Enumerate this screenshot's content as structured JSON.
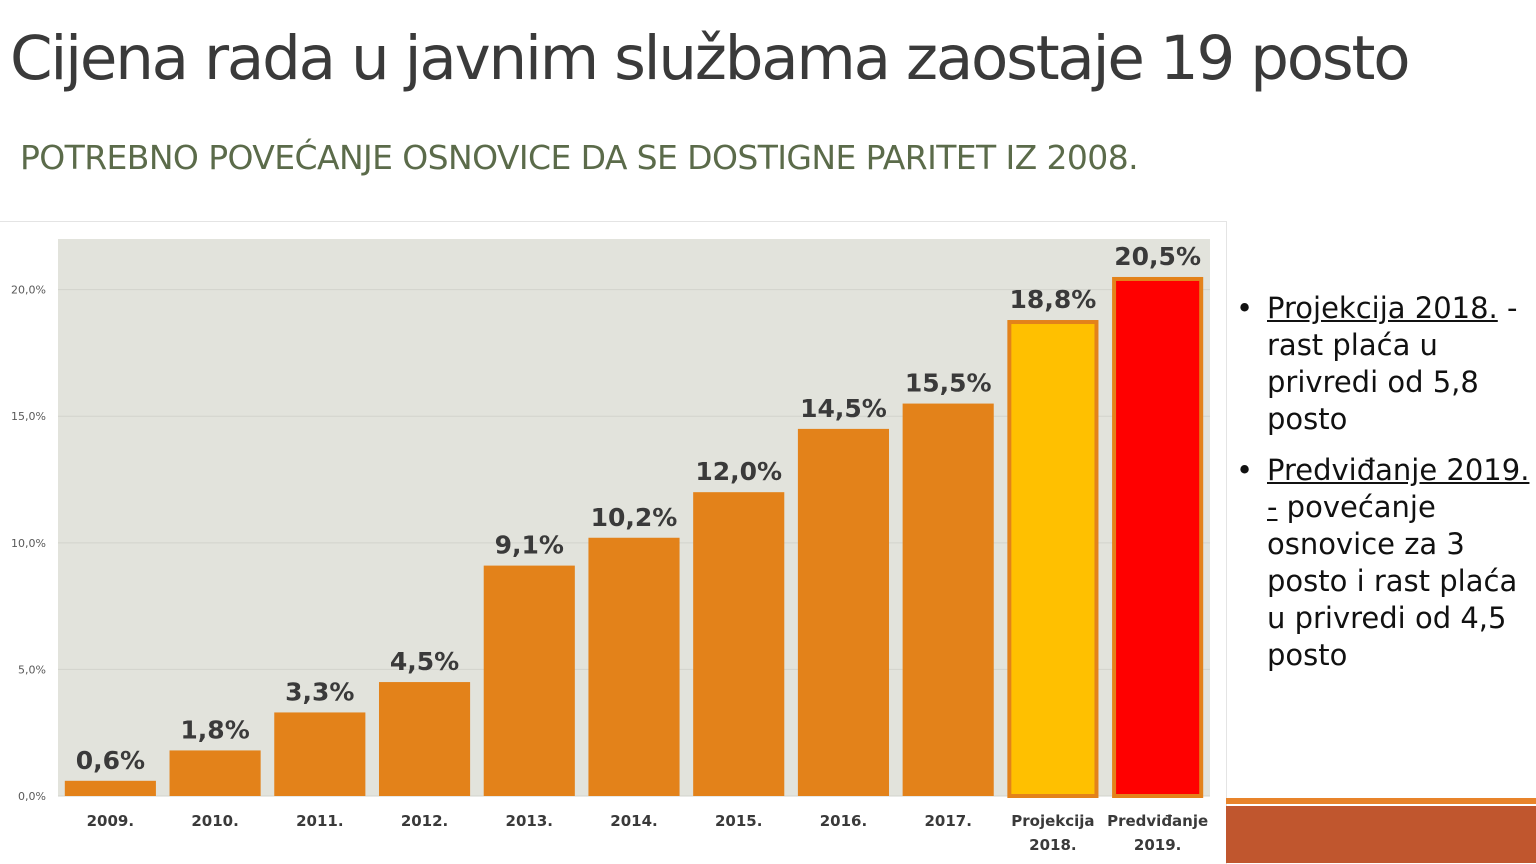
{
  "slide": {
    "title": "Cijena rada u javnim službama zaostaje 19 posto",
    "subtitle": "POTREBNO POVEĆANJE OSNOVICE DA SE DOSTIGNE PARITET IZ 2008."
  },
  "notes": [
    {
      "bullet": "•",
      "underlined": "Projekcija 2018.",
      "rest": " - rast plaća u privredi od 5,8 posto"
    },
    {
      "bullet": "•",
      "underlined": "Predviđanje 2019. -",
      "rest": " povećanje osnovice za 3 posto i rast plaća u privredi od 4,5 posto"
    }
  ],
  "chart_data": {
    "type": "bar",
    "categories": [
      "2009.",
      "2010.",
      "2011.",
      "2012.",
      "2013.",
      "2014.",
      "2015.",
      "2016.",
      "2017.",
      "Projekcija 2018.",
      "Predviđanje 2019."
    ],
    "category_lines": [
      [
        "2009."
      ],
      [
        "2010."
      ],
      [
        "2011."
      ],
      [
        "2012."
      ],
      [
        "2013."
      ],
      [
        "2014."
      ],
      [
        "2015."
      ],
      [
        "2016."
      ],
      [
        "2017."
      ],
      [
        "Projekcija",
        "2018."
      ],
      [
        "Predviđanje",
        "2019."
      ]
    ],
    "values": [
      0.6,
      1.8,
      3.3,
      4.5,
      9.1,
      10.2,
      12.0,
      14.5,
      15.5,
      18.8,
      20.5
    ],
    "value_labels": [
      "0,6%",
      "1,8%",
      "3,3%",
      "4,5%",
      "9,1%",
      "10,2%",
      "12,0%",
      "14,5%",
      "15,5%",
      "18,8%",
      "20,5%"
    ],
    "colors": [
      "#e3821a",
      "#e3821a",
      "#e3821a",
      "#e3821a",
      "#e3821a",
      "#e3821a",
      "#e3821a",
      "#e3821a",
      "#e3821a",
      "#ffc000",
      "#ff0000"
    ],
    "outlined": [
      false,
      false,
      false,
      false,
      false,
      false,
      false,
      false,
      false,
      true,
      true
    ],
    "outline_color": "#e3821a",
    "ylim": [
      0,
      22
    ],
    "yticks": [
      0,
      5,
      10,
      15,
      20
    ],
    "ytick_labels": [
      "0,0%",
      "5,0%",
      "10,0%",
      "15,0%",
      "20,0%"
    ],
    "plot_background": "#e2e3dc",
    "grid": true,
    "legend": "none"
  }
}
